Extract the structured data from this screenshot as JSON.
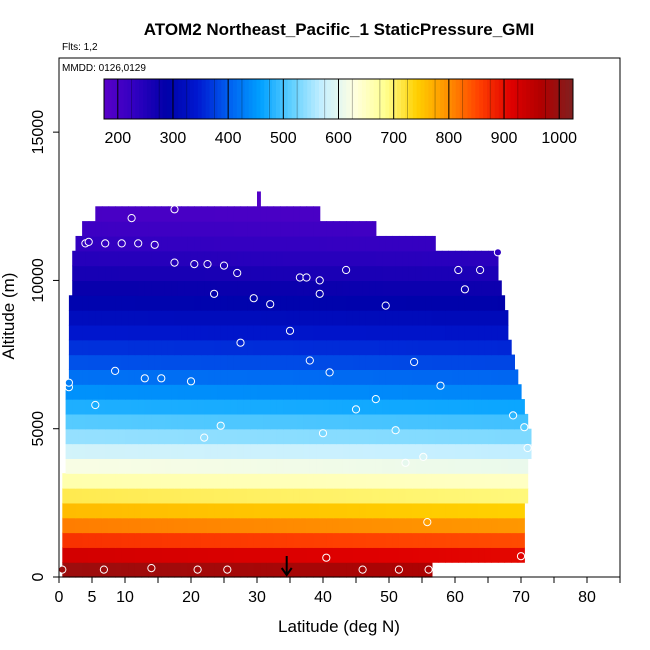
{
  "chart_data": {
    "type": "heatmap",
    "title": "ATOM2 Northeast_Pacific_1 StaticPressure_GMI",
    "flights_label": "Flts: 1,2",
    "dates_label": "MMDD: 0126,0129",
    "xlabel": "Latitude (deg N)",
    "ylabel": "Altitude (m)",
    "xlim": [
      0,
      85
    ],
    "ylim": [
      0,
      17500
    ],
    "x_ticks": [
      0,
      5,
      10,
      20,
      30,
      40,
      50,
      60,
      70,
      80
    ],
    "x_minor_ticks": [
      15,
      25,
      35,
      45,
      55,
      65,
      75,
      85
    ],
    "y_ticks": [
      0,
      5000,
      10000,
      15000
    ],
    "colorbar": {
      "min": 175,
      "max": 1025,
      "ticks": [
        200,
        300,
        400,
        500,
        600,
        700,
        800,
        900,
        1000
      ],
      "colors": [
        "#5a00c8",
        "#3000c0",
        "#0000a8",
        "#0018d0",
        "#0060f0",
        "#00a0ff",
        "#60d0ff",
        "#c8f0ff",
        "#ffffe0",
        "#ffff90",
        "#ffd000",
        "#ff9000",
        "#ff4000",
        "#e00000",
        "#b00000",
        "#802020"
      ]
    },
    "model_extent": [
      {
        "alt": 250,
        "lat_min": 0.5,
        "lat_max": 56.5
      },
      {
        "alt": 750,
        "lat_min": 0.5,
        "lat_max": 70.5
      },
      {
        "alt": 1250,
        "lat_min": 0.5,
        "lat_max": 70.5
      },
      {
        "alt": 1750,
        "lat_min": 0.5,
        "lat_max": 70.5
      },
      {
        "alt": 2250,
        "lat_min": 0.5,
        "lat_max": 70.5
      },
      {
        "alt": 2750,
        "lat_min": 0.5,
        "lat_max": 71
      },
      {
        "alt": 3250,
        "lat_min": 0.5,
        "lat_max": 71
      },
      {
        "alt": 3750,
        "lat_min": 1,
        "lat_max": 71
      },
      {
        "alt": 4250,
        "lat_min": 1,
        "lat_max": 71.5
      },
      {
        "alt": 4750,
        "lat_min": 1,
        "lat_max": 71.5
      },
      {
        "alt": 5250,
        "lat_min": 1,
        "lat_max": 71
      },
      {
        "alt": 5750,
        "lat_min": 1,
        "lat_max": 70.5
      },
      {
        "alt": 6250,
        "lat_min": 1,
        "lat_max": 70
      },
      {
        "alt": 6750,
        "lat_min": 1.5,
        "lat_max": 69.5
      },
      {
        "alt": 7250,
        "lat_min": 1.5,
        "lat_max": 69
      },
      {
        "alt": 7750,
        "lat_min": 1.5,
        "lat_max": 68.5
      },
      {
        "alt": 8250,
        "lat_min": 1.5,
        "lat_max": 68
      },
      {
        "alt": 8750,
        "lat_min": 1.5,
        "lat_max": 68
      },
      {
        "alt": 9250,
        "lat_min": 1.5,
        "lat_max": 67.5
      },
      {
        "alt": 9750,
        "lat_min": 2,
        "lat_max": 67
      },
      {
        "alt": 10250,
        "lat_min": 2,
        "lat_max": 66.5
      },
      {
        "alt": 10750,
        "lat_min": 2,
        "lat_max": 66.5
      },
      {
        "alt": 11250,
        "lat_min": 2.5,
        "lat_max": 57
      },
      {
        "alt": 11750,
        "lat_min": 3.5,
        "lat_max": 48
      },
      {
        "alt": 12250,
        "lat_min": 5.5,
        "lat_max": 39.5
      },
      {
        "alt": 12750,
        "lat_min": 30,
        "lat_max": 30.5
      }
    ],
    "observations": [
      [
        0.5,
        250
      ],
      [
        6.8,
        250
      ],
      [
        14,
        300
      ],
      [
        21,
        250
      ],
      [
        25.5,
        250
      ],
      [
        40.5,
        650
      ],
      [
        46,
        250
      ],
      [
        51.5,
        250
      ],
      [
        56,
        250
      ],
      [
        70,
        700
      ],
      [
        55.8,
        1850
      ],
      [
        52.5,
        3850
      ],
      [
        55.2,
        4050
      ],
      [
        71,
        4350
      ],
      [
        22,
        4700
      ],
      [
        24.5,
        5100
      ],
      [
        40,
        4850
      ],
      [
        51,
        4950
      ],
      [
        45,
        5650
      ],
      [
        48,
        6000
      ],
      [
        68.8,
        5450
      ],
      [
        70.5,
        5050
      ],
      [
        5.5,
        5800
      ],
      [
        1.5,
        6400
      ],
      [
        1.5,
        6550
      ],
      [
        8.5,
        6950
      ],
      [
        13,
        6700
      ],
      [
        15.5,
        6700
      ],
      [
        20,
        6600
      ],
      [
        41,
        6900
      ],
      [
        38,
        7300
      ],
      [
        53.8,
        7250
      ],
      [
        57.8,
        6450
      ],
      [
        27.5,
        7900
      ],
      [
        35,
        8300
      ],
      [
        23.5,
        9550
      ],
      [
        29.5,
        9400
      ],
      [
        32,
        9200
      ],
      [
        39.5,
        9550
      ],
      [
        49.5,
        9150
      ],
      [
        17.5,
        10600
      ],
      [
        20.5,
        10550
      ],
      [
        22.5,
        10550
      ],
      [
        25,
        10500
      ],
      [
        27,
        10250
      ],
      [
        36.5,
        10100
      ],
      [
        37.5,
        10100
      ],
      [
        39.5,
        10000
      ],
      [
        43.5,
        10350
      ],
      [
        60.5,
        10350
      ],
      [
        61.5,
        9700
      ],
      [
        63.8,
        10350
      ],
      [
        66.5,
        10950
      ],
      [
        4,
        11250
      ],
      [
        4.5,
        11300
      ],
      [
        7,
        11250
      ],
      [
        9.5,
        11250
      ],
      [
        12,
        11250
      ],
      [
        14.5,
        11200
      ],
      [
        11,
        12100
      ],
      [
        17.5,
        12400
      ]
    ],
    "flight_marker_lat": 34.5
  }
}
